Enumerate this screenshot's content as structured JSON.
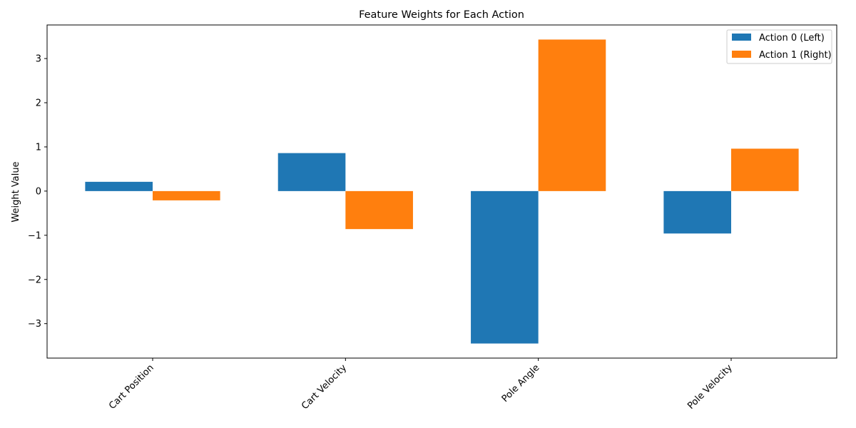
{
  "chart_data": {
    "type": "bar",
    "title": "Feature Weights for Each Action",
    "xlabel": "",
    "ylabel": "Weight Value",
    "categories": [
      "Cart Position",
      "Cart Velocity",
      "Pole Angle",
      "Pole Velocity"
    ],
    "series": [
      {
        "name": "Action 0 (Left)",
        "color": "#1f77b4",
        "values": [
          0.21,
          0.86,
          -3.45,
          -0.96
        ]
      },
      {
        "name": "Action 1 (Right)",
        "color": "#ff7f0e",
        "values": [
          -0.21,
          -0.86,
          3.43,
          0.96
        ]
      }
    ],
    "ylim": [
      -3.78,
      3.76
    ],
    "yticks": [
      3,
      2,
      1,
      0,
      -1,
      -2,
      -3
    ],
    "ytick_labels": [
      "3",
      "2",
      "1",
      "0",
      "−1",
      "−2",
      "−3"
    ],
    "legend_position": "upper-right",
    "grid": false
  }
}
